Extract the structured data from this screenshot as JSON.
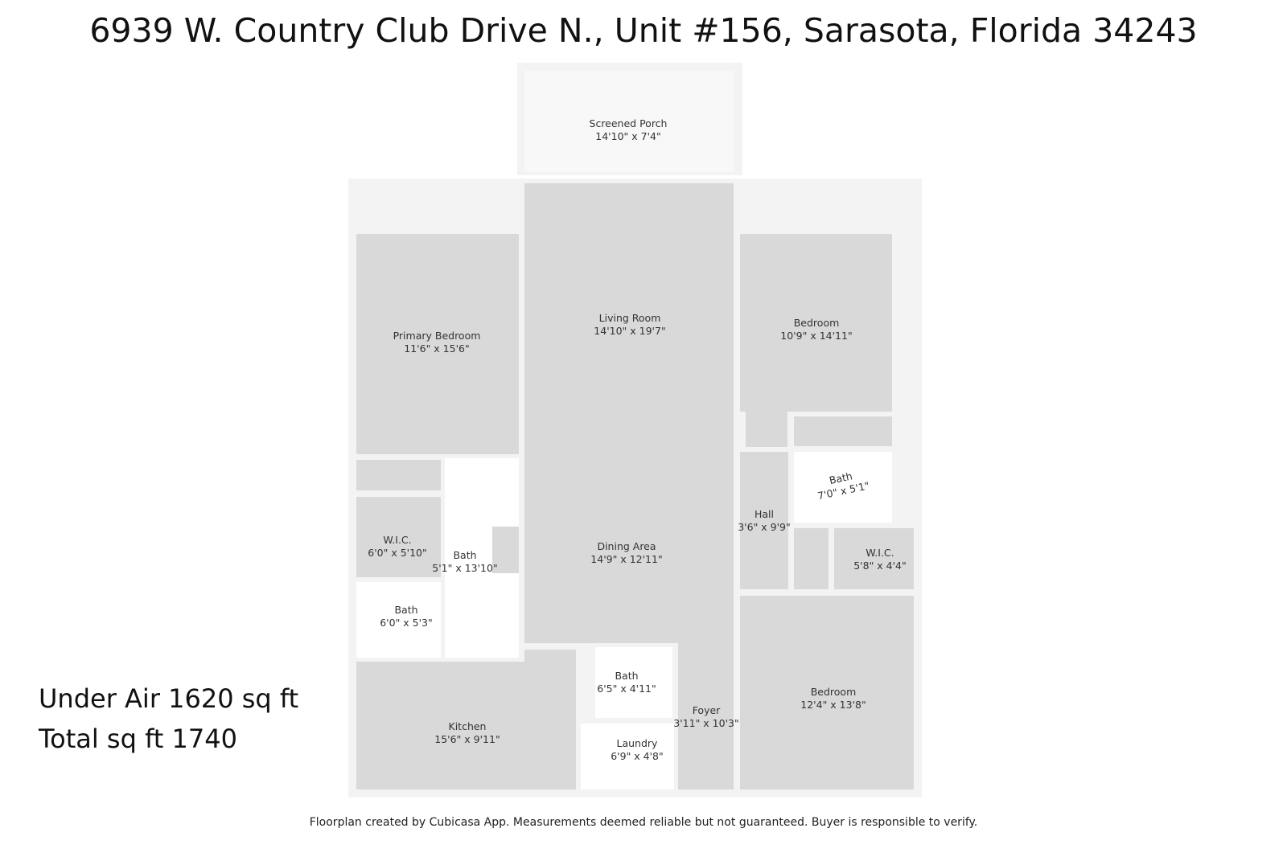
{
  "title": "6939 W. Country Club Drive N., Unit #156, Sarasota, Florida 34243",
  "area": {
    "under_air": "Under Air 1620 sq ft",
    "total": "Total sq ft 1740"
  },
  "footer": "Floorplan created by Cubicasa App. Measurements deemed reliable but not guaranteed. Buyer is responsible to verify.",
  "rooms": [
    {
      "name": "Screened Porch",
      "dim": "14'10\" x 7'4\""
    },
    {
      "name": "Living Room",
      "dim": "14'10\" x 19'7\""
    },
    {
      "name": "Primary Bedroom",
      "dim": "11'6\" x 15'6\""
    },
    {
      "name": "Bedroom",
      "dim": "10'9\" x 14'11\""
    },
    {
      "name": "Bath",
      "dim": "7'0\" x 5'1\""
    },
    {
      "name": "Hall",
      "dim": "3'6\" x 9'9\""
    },
    {
      "name": "W.I.C.",
      "dim": "6'0\" x 5'10\""
    },
    {
      "name": "Bath",
      "dim": "5'1\" x 13'10\""
    },
    {
      "name": "Dining Area",
      "dim": "14'9\" x 12'11\""
    },
    {
      "name": "W.I.C.",
      "dim": "5'8\" x 4'4\""
    },
    {
      "name": "Bath",
      "dim": "6'0\" x 5'3\""
    },
    {
      "name": "Bath",
      "dim": "6'5\" x 4'11\""
    },
    {
      "name": "Foyer",
      "dim": "3'11\" x 10'3\""
    },
    {
      "name": "Bedroom",
      "dim": "12'4\" x 13'8\""
    },
    {
      "name": "Kitchen",
      "dim": "15'6\" x 9'11\""
    },
    {
      "name": "Laundry",
      "dim": "6'9\" x 4'8\""
    }
  ]
}
